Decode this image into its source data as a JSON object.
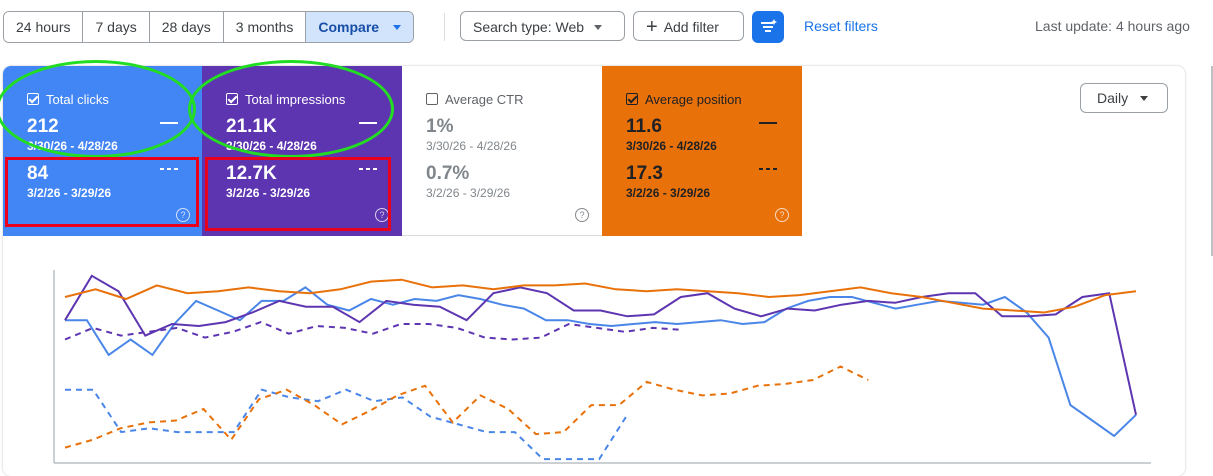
{
  "toolbar": {
    "ranges": [
      "24 hours",
      "7 days",
      "28 days",
      "3 months",
      "Compare"
    ],
    "search_type": "Search type: Web",
    "add_filter": "Add filter",
    "reset_filters": "Reset filters",
    "last_update": "Last update: 4 hours ago"
  },
  "cards": [
    {
      "label": "Total clicks",
      "checked": true,
      "current": "212",
      "current_range": "3/30/26 - 4/28/26",
      "previous": "84",
      "previous_range": "3/2/26 - 3/29/26"
    },
    {
      "label": "Total impressions",
      "checked": true,
      "current": "21.1K",
      "current_range": "3/30/26 - 4/28/26",
      "previous": "12.7K",
      "previous_range": "3/2/26 - 3/29/26"
    },
    {
      "label": "Average CTR",
      "checked": false,
      "current": "1%",
      "current_range": "3/30/26 - 4/28/26",
      "previous": "0.7%",
      "previous_range": "3/2/26 - 3/29/26"
    },
    {
      "label": "Average position",
      "checked": true,
      "current": "11.6",
      "current_range": "3/30/26 - 4/28/26",
      "previous": "17.3",
      "previous_range": "3/2/26 - 3/29/26"
    }
  ],
  "granularity": "Daily",
  "colors": {
    "clicks": "#4a86e8",
    "impressions": "#5e35b1",
    "ctr": "#ffffff",
    "position": "#e8710a",
    "accent": "#1a73e8"
  },
  "chart_data": {
    "type": "line",
    "note_scale": "relative",
    "ylim": [
      0,
      100
    ],
    "series": [
      {
        "name": "Total clicks",
        "style": "solid",
        "values": [
          74,
          74,
          56,
          64,
          56,
          72,
          84,
          79,
          74,
          84,
          84,
          91,
          82,
          79,
          85,
          82,
          85,
          84,
          87,
          85,
          82,
          80,
          74,
          74,
          72,
          71,
          72,
          73,
          72,
          73,
          74,
          72,
          73,
          80,
          84,
          86,
          86,
          83,
          80,
          82,
          84,
          83,
          82,
          86,
          78,
          65,
          30,
          22,
          14,
          25
        ]
      },
      {
        "name": "Total impressions",
        "style": "solid",
        "values": [
          74,
          97,
          89,
          66,
          72,
          71,
          73,
          78,
          84,
          81,
          81,
          73,
          84,
          82,
          81,
          74,
          88,
          91,
          88,
          79,
          79,
          76,
          77,
          86,
          88,
          80,
          76,
          80,
          79,
          82,
          84,
          83,
          86,
          88,
          88,
          76,
          76,
          77,
          86,
          88,
          25
        ]
      },
      {
        "name": "Average position",
        "style": "solid",
        "values": [
          86,
          90,
          85,
          92,
          88,
          89,
          91,
          89,
          88,
          90,
          94,
          95,
          91,
          92,
          90,
          92,
          92,
          93,
          90,
          89,
          90,
          89,
          88,
          86,
          87,
          89,
          91,
          88,
          86,
          83,
          80,
          79,
          78,
          81,
          87,
          89
        ]
      },
      {
        "name": "Total clicks (previous)",
        "style": "dashed",
        "values": [
          38,
          38,
          16,
          18,
          16,
          16,
          16,
          38,
          34,
          32,
          38,
          32,
          34,
          24,
          20,
          16,
          16,
          2,
          2,
          2,
          25
        ]
      },
      {
        "name": "Total impressions (previous)",
        "style": "dashed",
        "values": [
          64,
          70,
          66,
          68,
          70,
          65,
          68,
          73,
          67,
          71,
          70,
          67,
          72,
          72,
          70,
          65,
          64,
          65,
          72,
          70,
          68,
          70,
          69
        ]
      },
      {
        "name": "Average position (previous)",
        "style": "dashed",
        "values": [
          8,
          12,
          18,
          21,
          22,
          28,
          12,
          33,
          38,
          30,
          20,
          27,
          35,
          40,
          21,
          35,
          28,
          15,
          16,
          30,
          30,
          42,
          38,
          35,
          36,
          40,
          41,
          43,
          50,
          43
        ]
      }
    ]
  }
}
